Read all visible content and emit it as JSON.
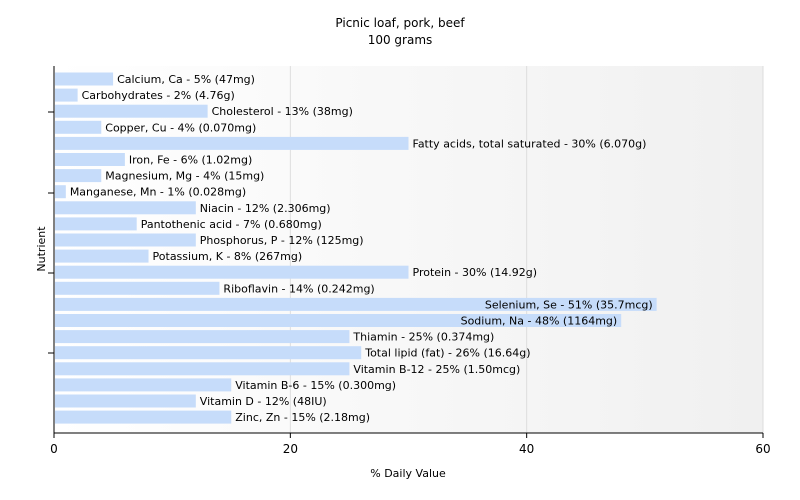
{
  "chart_data": {
    "type": "bar",
    "orientation": "horizontal",
    "title": "Picnic loaf, pork, beef",
    "subtitle": "100 grams",
    "xlabel": "% Daily Value",
    "ylabel": "Nutrient",
    "xlim": [
      0,
      60
    ],
    "xticks": [
      0,
      20,
      40,
      60
    ],
    "grid": true,
    "bar_color": "#c6dcfa",
    "categories": [
      "Calcium, Ca",
      "Carbohydrates",
      "Cholesterol",
      "Copper, Cu",
      "Fatty acids, total saturated",
      "Iron, Fe",
      "Magnesium, Mg",
      "Manganese, Mn",
      "Niacin",
      "Pantothenic acid",
      "Phosphorus, P",
      "Potassium, K",
      "Protein",
      "Riboflavin",
      "Selenium, Se",
      "Sodium, Na",
      "Thiamin",
      "Total lipid (fat)",
      "Vitamin B-12",
      "Vitamin B-6",
      "Vitamin D",
      "Zinc, Zn"
    ],
    "values": [
      5,
      2,
      13,
      4,
      30,
      6,
      4,
      1,
      12,
      7,
      12,
      8,
      30,
      14,
      51,
      48,
      25,
      26,
      25,
      15,
      12,
      15
    ],
    "labels": [
      "Calcium, Ca - 5% (47mg)",
      "Carbohydrates - 2% (4.76g)",
      "Cholesterol - 13% (38mg)",
      "Copper, Cu - 4% (0.070mg)",
      "Fatty acids, total saturated - 30% (6.070g)",
      "Iron, Fe - 6% (1.02mg)",
      "Magnesium, Mg - 4% (15mg)",
      "Manganese, Mn - 1% (0.028mg)",
      "Niacin - 12% (2.306mg)",
      "Pantothenic acid - 7% (0.680mg)",
      "Phosphorus, P - 12% (125mg)",
      "Potassium, K - 8% (267mg)",
      "Protein - 30% (14.92g)",
      "Riboflavin - 14% (0.242mg)",
      "Selenium, Se - 51% (35.7mcg)",
      "Sodium, Na - 48% (1164mg)",
      "Thiamin - 25% (0.374mg)",
      "Total lipid (fat) - 26% (16.64g)",
      "Vitamin B-12 - 25% (1.50mcg)",
      "Vitamin B-6 - 15% (0.300mg)",
      "Vitamin D - 12% (48IU)",
      "Zinc, Zn - 15% (2.18mg)"
    ]
  }
}
